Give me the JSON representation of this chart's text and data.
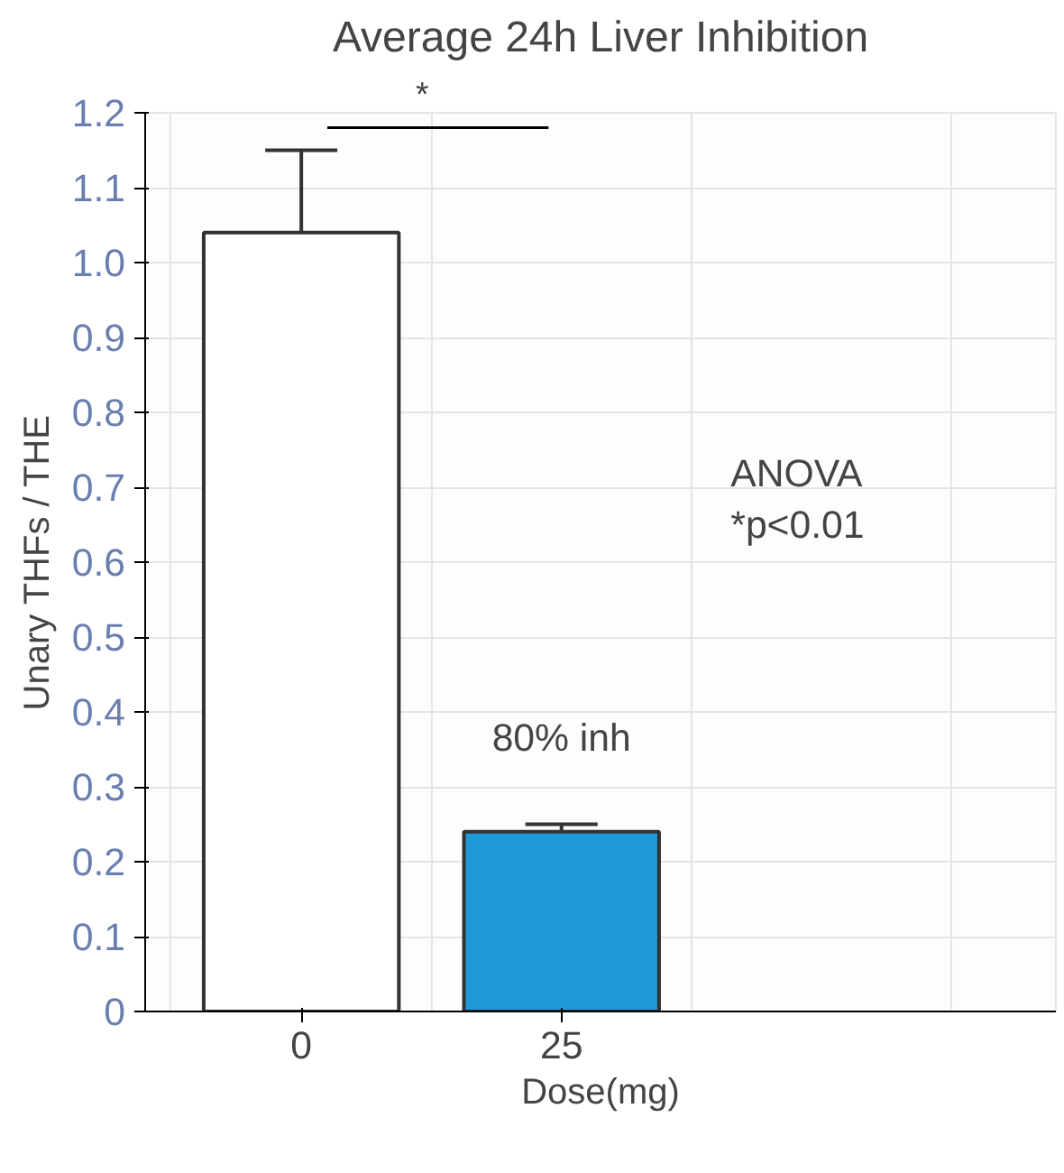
{
  "chart_data": {
    "type": "bar",
    "title": "Average 24h Liver Inhibition",
    "xlabel": "Dose(mg)",
    "ylabel": "Unary THFs / THE",
    "categories": [
      "0",
      "25"
    ],
    "values": [
      1.04,
      0.24
    ],
    "colors": [
      "#ffffff",
      "#1e9ad8"
    ],
    "errors": [
      [
        1.04,
        1.15
      ],
      [
        0.24,
        0.25
      ]
    ],
    "ylim": [
      0,
      1.2
    ],
    "yticks": [
      0,
      0.1,
      0.2,
      0.3,
      0.4,
      0.5,
      0.6,
      0.7,
      0.8,
      0.9,
      {
        "value": 1.0,
        "label": "1.0"
      },
      1.1,
      1.2
    ],
    "grid": true,
    "annotations": [
      "80% inh",
      "*",
      "ANOVA\n*p<0.01"
    ]
  }
}
